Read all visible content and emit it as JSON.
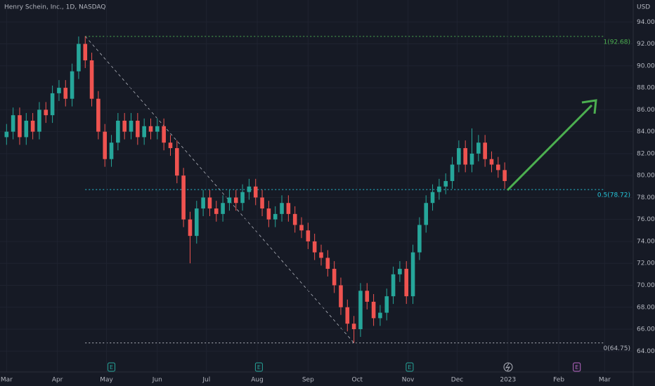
{
  "chart_data": {
    "type": "candlestick",
    "title": "Henry Schein, Inc., 1D, NASDAQ",
    "currency": "USD",
    "x": [
      0,
      4,
      8,
      12,
      16,
      20,
      24,
      28,
      32,
      36,
      40,
      44,
      48,
      52,
      56,
      60,
      64,
      68,
      72,
      76,
      80,
      84,
      88,
      92,
      96,
      100,
      104,
      108,
      112,
      116,
      120,
      124,
      128,
      132,
      136,
      140,
      144,
      148,
      152,
      156,
      160,
      164,
      168,
      172,
      176,
      180,
      184,
      188,
      192,
      196,
      200,
      204,
      208,
      212,
      216,
      220,
      224,
      228,
      232,
      236,
      240,
      244,
      248,
      252,
      256,
      260,
      264,
      268,
      272,
      276,
      280,
      284,
      288,
      292,
      296,
      300,
      304
    ],
    "open": [
      83.5,
      84.0,
      85.5,
      83.5,
      85.0,
      84.0,
      86.0,
      85.5,
      87.5,
      88.0,
      87.0,
      89.5,
      92.0,
      90.5,
      87.0,
      84.0,
      81.5,
      83.0,
      85.0,
      84.0,
      85.0,
      83.5,
      84.5,
      84.0,
      84.5,
      83.0,
      82.5,
      80.0,
      76.0,
      74.5,
      77.0,
      78.0,
      77.0,
      76.5,
      77.5,
      78.0,
      77.5,
      78.5,
      79.0,
      78.0,
      77.0,
      76.0,
      76.5,
      77.5,
      76.5,
      75.5,
      75.0,
      74.0,
      73.0,
      72.5,
      71.5,
      70.0,
      68.0,
      66.5,
      66.0,
      69.5,
      68.5,
      67.0,
      67.5,
      69.0,
      71.0,
      71.5,
      69.0,
      73.0,
      75.5,
      77.5,
      78.5,
      79.0,
      79.5,
      81.0,
      82.5,
      81.0,
      82.0,
      83.0,
      81.5,
      81.0,
      80.5
    ],
    "high": [
      84.7,
      86.2,
      86.2,
      85.7,
      85.7,
      86.7,
      86.7,
      88.2,
      88.7,
      88.7,
      90.2,
      92.68,
      92.7,
      91.2,
      87.7,
      84.7,
      83.7,
      85.7,
      85.7,
      85.7,
      85.7,
      85.2,
      85.2,
      85.2,
      85.2,
      83.7,
      83.2,
      80.7,
      76.7,
      77.7,
      78.7,
      78.7,
      77.7,
      78.2,
      78.7,
      78.7,
      79.2,
      79.7,
      79.7,
      78.7,
      77.7,
      77.2,
      78.2,
      78.2,
      77.2,
      76.2,
      75.7,
      74.7,
      73.7,
      73.2,
      72.2,
      70.7,
      68.7,
      67.2,
      70.2,
      70.2,
      69.2,
      68.2,
      69.7,
      71.7,
      72.2,
      72.2,
      73.7,
      76.2,
      78.2,
      79.2,
      79.7,
      80.2,
      81.7,
      83.2,
      83.2,
      84.3,
      83.7,
      83.7,
      82.2,
      81.7,
      81.2
    ],
    "low": [
      82.8,
      83.3,
      82.8,
      82.8,
      83.3,
      83.3,
      84.8,
      84.8,
      86.8,
      86.3,
      86.3,
      88.8,
      89.8,
      86.3,
      83.3,
      80.8,
      80.8,
      82.3,
      83.3,
      83.3,
      82.8,
      82.8,
      83.3,
      83.3,
      82.3,
      81.8,
      79.3,
      75.3,
      72.0,
      73.8,
      76.3,
      76.3,
      75.8,
      75.8,
      76.8,
      76.8,
      76.8,
      77.8,
      77.3,
      76.3,
      75.3,
      75.3,
      75.8,
      75.8,
      74.8,
      74.3,
      73.3,
      72.3,
      71.8,
      70.8,
      69.3,
      67.3,
      65.8,
      64.75,
      65.3,
      67.8,
      66.3,
      66.3,
      66.8,
      68.3,
      70.3,
      68.3,
      68.3,
      72.3,
      74.8,
      76.8,
      77.8,
      78.3,
      78.8,
      80.3,
      80.3,
      80.3,
      81.3,
      80.8,
      80.3,
      79.8,
      78.8
    ],
    "close": [
      84.0,
      85.5,
      83.5,
      85.0,
      84.0,
      86.0,
      85.5,
      87.5,
      88.0,
      87.0,
      89.5,
      92.0,
      90.5,
      87.0,
      84.0,
      81.5,
      83.0,
      85.0,
      84.0,
      85.0,
      83.5,
      84.5,
      84.0,
      84.5,
      83.0,
      82.5,
      80.0,
      76.0,
      74.5,
      77.0,
      78.0,
      77.0,
      76.5,
      77.5,
      78.0,
      77.5,
      78.5,
      79.0,
      78.0,
      77.0,
      76.0,
      76.5,
      77.5,
      76.5,
      75.5,
      75.0,
      74.0,
      73.0,
      72.5,
      71.5,
      70.0,
      68.0,
      66.5,
      66.0,
      69.5,
      68.5,
      67.0,
      67.5,
      69.0,
      71.0,
      71.5,
      69.0,
      73.0,
      75.5,
      77.5,
      78.5,
      79.0,
      79.5,
      81.0,
      82.5,
      81.0,
      82.0,
      83.0,
      81.5,
      81.0,
      80.5,
      79.5
    ],
    "up_color": "#26a69a",
    "down_color": "#ef5350",
    "xlim": [
      -4,
      382
    ],
    "ylim": [
      62.1,
      96
    ],
    "xticks": [
      {
        "value": 0,
        "label": "Mar"
      },
      {
        "value": 31,
        "label": "Apr"
      },
      {
        "value": 61,
        "label": "May"
      },
      {
        "value": 92,
        "label": "Jun"
      },
      {
        "value": 122,
        "label": "Jul"
      },
      {
        "value": 153,
        "label": "Aug"
      },
      {
        "value": 184,
        "label": "Sep"
      },
      {
        "value": 214,
        "label": "Oct"
      },
      {
        "value": 245,
        "label": "Nov"
      },
      {
        "value": 275,
        "label": "Dec"
      },
      {
        "value": 306,
        "label": "2023"
      },
      {
        "value": 337,
        "label": "Feb"
      },
      {
        "value": 365,
        "label": "Mar"
      }
    ],
    "yticks": [
      {
        "value": 64,
        "label": "64.00"
      },
      {
        "value": 66,
        "label": "66.00"
      },
      {
        "value": 68,
        "label": "68.00"
      },
      {
        "value": 70,
        "label": "70.00"
      },
      {
        "value": 72,
        "label": "72.00"
      },
      {
        "value": 74,
        "label": "74.00"
      },
      {
        "value": 76,
        "label": "76.00"
      },
      {
        "value": 78,
        "label": "78.00"
      },
      {
        "value": 80,
        "label": "80.00"
      },
      {
        "value": 82,
        "label": "82.00"
      },
      {
        "value": 84,
        "label": "84.00"
      },
      {
        "value": 86,
        "label": "86.00"
      },
      {
        "value": 88,
        "label": "88.00"
      },
      {
        "value": 90,
        "label": "90.00"
      },
      {
        "value": 92,
        "label": "92.00"
      },
      {
        "value": 94,
        "label": "94.00"
      }
    ],
    "grid": true,
    "fib_levels": [
      {
        "value": 92.68,
        "label": "1(92.68)",
        "color": "#4caf50"
      },
      {
        "value": 78.72,
        "label": "0.5(78.72)",
        "color": "#26c6da"
      },
      {
        "value": 64.75,
        "label": "0(64.75)",
        "color": "#b2b5be"
      }
    ],
    "events": [
      {
        "x": 64,
        "label": "E"
      },
      {
        "x": 154,
        "label": "E"
      },
      {
        "x": 246,
        "label": "E"
      },
      {
        "x": 348,
        "label": "E"
      }
    ]
  }
}
